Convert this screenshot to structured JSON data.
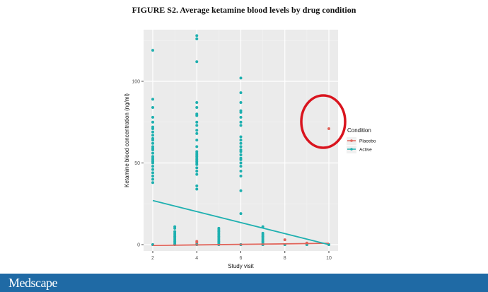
{
  "footer": {
    "logo": "Medscape"
  },
  "colors": {
    "placebo": "#e0645a",
    "active": "#1fb0b0",
    "annotation_circle": "#d9141e",
    "footer": "#1f6aa5",
    "panel": "#ebebeb"
  },
  "chart_data": {
    "type": "scatter",
    "title": "FIGURE S2. Average ketamine blood levels by drug condition",
    "xlabel": "Study visit",
    "ylabel": "Ketamine blood concentration (ng/ml)",
    "xlim": [
      1.8,
      10.3
    ],
    "ylim": [
      -4,
      133
    ],
    "xticks": [
      2,
      4,
      6,
      8,
      10
    ],
    "yticks": [
      0,
      50,
      100
    ],
    "grid": true,
    "legend": {
      "title": "Condition",
      "position": "right"
    },
    "series": [
      {
        "name": "Placebo",
        "color": "#e0645a",
        "points": [
          [
            2,
            0
          ],
          [
            3,
            0
          ],
          [
            4,
            0
          ],
          [
            4,
            1
          ],
          [
            4,
            2
          ],
          [
            5,
            0
          ],
          [
            6,
            0
          ],
          [
            7,
            0
          ],
          [
            8,
            0
          ],
          [
            8,
            3
          ],
          [
            9,
            0
          ],
          [
            9,
            1
          ],
          [
            10,
            0
          ],
          [
            10,
            71
          ]
        ],
        "trend": [
          [
            2,
            -0.5
          ],
          [
            10,
            0.8
          ]
        ]
      },
      {
        "name": "Active",
        "color": "#1fb0b0",
        "points": [
          [
            2,
            0
          ],
          [
            2,
            38
          ],
          [
            2,
            40
          ],
          [
            2,
            42
          ],
          [
            2,
            44
          ],
          [
            2,
            46
          ],
          [
            2,
            48
          ],
          [
            2,
            50
          ],
          [
            2,
            51
          ],
          [
            2,
            52
          ],
          [
            2,
            53
          ],
          [
            2,
            54
          ],
          [
            2,
            56
          ],
          [
            2,
            58
          ],
          [
            2,
            59
          ],
          [
            2,
            60
          ],
          [
            2,
            62
          ],
          [
            2,
            64
          ],
          [
            2,
            65
          ],
          [
            2,
            67
          ],
          [
            2,
            69
          ],
          [
            2,
            71
          ],
          [
            2,
            72
          ],
          [
            2,
            75
          ],
          [
            2,
            78
          ],
          [
            2,
            84
          ],
          [
            2,
            89
          ],
          [
            2,
            119
          ],
          [
            3,
            0
          ],
          [
            3,
            1
          ],
          [
            3,
            2
          ],
          [
            3,
            3
          ],
          [
            3,
            4
          ],
          [
            3,
            5
          ],
          [
            3,
            6
          ],
          [
            3,
            7
          ],
          [
            3,
            8
          ],
          [
            3,
            10
          ],
          [
            3,
            11
          ],
          [
            4,
            0
          ],
          [
            4,
            34
          ],
          [
            4,
            36
          ],
          [
            4,
            43
          ],
          [
            4,
            45
          ],
          [
            4,
            47
          ],
          [
            4,
            49
          ],
          [
            4,
            50
          ],
          [
            4,
            51
          ],
          [
            4,
            52
          ],
          [
            4,
            53
          ],
          [
            4,
            54
          ],
          [
            4,
            55
          ],
          [
            4,
            56
          ],
          [
            4,
            57
          ],
          [
            4,
            60
          ],
          [
            4,
            64
          ],
          [
            4,
            68
          ],
          [
            4,
            70
          ],
          [
            4,
            73
          ],
          [
            4,
            75
          ],
          [
            4,
            79
          ],
          [
            4,
            80
          ],
          [
            4,
            84
          ],
          [
            4,
            87
          ],
          [
            4,
            112
          ],
          [
            4,
            126
          ],
          [
            4,
            128
          ],
          [
            5,
            0
          ],
          [
            5,
            1
          ],
          [
            5,
            2
          ],
          [
            5,
            3
          ],
          [
            5,
            4
          ],
          [
            5,
            5
          ],
          [
            5,
            6
          ],
          [
            5,
            7
          ],
          [
            5,
            8
          ],
          [
            5,
            9
          ],
          [
            5,
            10
          ],
          [
            6,
            0
          ],
          [
            6,
            19
          ],
          [
            6,
            33
          ],
          [
            6,
            42
          ],
          [
            6,
            45
          ],
          [
            6,
            48
          ],
          [
            6,
            50
          ],
          [
            6,
            52
          ],
          [
            6,
            53
          ],
          [
            6,
            55
          ],
          [
            6,
            57
          ],
          [
            6,
            58
          ],
          [
            6,
            60
          ],
          [
            6,
            62
          ],
          [
            6,
            64
          ],
          [
            6,
            66
          ],
          [
            6,
            73
          ],
          [
            6,
            75
          ],
          [
            6,
            78
          ],
          [
            6,
            81
          ],
          [
            6,
            82
          ],
          [
            6,
            87
          ],
          [
            6,
            93
          ],
          [
            6,
            102
          ],
          [
            7,
            0
          ],
          [
            7,
            1
          ],
          [
            7,
            2
          ],
          [
            7,
            3
          ],
          [
            7,
            4
          ],
          [
            7,
            5
          ],
          [
            7,
            6
          ],
          [
            7,
            7
          ],
          [
            7,
            11
          ],
          [
            8,
            0
          ],
          [
            9,
            0
          ],
          [
            10,
            0
          ]
        ],
        "trend": [
          [
            2,
            27
          ],
          [
            10,
            0
          ]
        ]
      }
    ],
    "annotations": [
      {
        "type": "circle",
        "around": [
          10,
          71
        ],
        "color": "#d9141e"
      }
    ]
  }
}
